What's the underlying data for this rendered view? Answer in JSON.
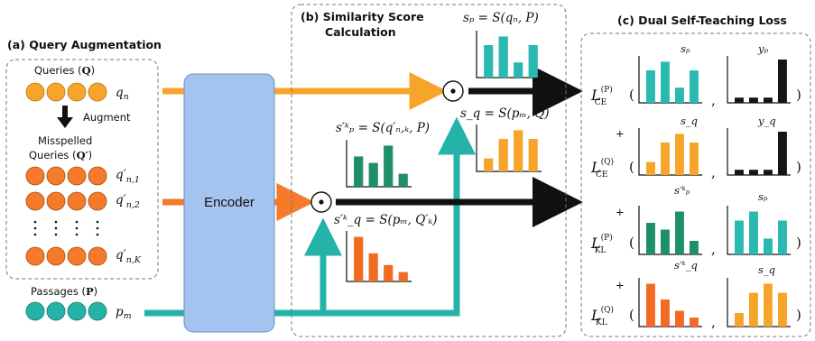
{
  "colors": {
    "query": "#f7a42b",
    "misspelled": "#f57a2a",
    "passage": "#25b3a7",
    "teal_bar": "#2ab9b0",
    "green_bar": "#1f8f66",
    "orange_bar": "#f7a42b",
    "red_bar": "#f36b22",
    "black_bar": "#151515",
    "encoder": "#a5c3ef"
  },
  "section_a": {
    "title": "(a) Query Augmentation",
    "queries_label": "Queries (",
    "queries_symbol": "Q",
    "queries_close": ")",
    "query_var": "q",
    "query_sub": "n",
    "augment_label": "Augment",
    "misspelled_line1": "Misspelled",
    "misspelled_line2": "Queries (",
    "misspelled_symbol": "Q′",
    "misspelled_close": ")",
    "misspelled_rows": [
      {
        "var": "q′",
        "sub": "n,1"
      },
      {
        "var": "q′",
        "sub": "n,2"
      },
      {
        "var": "q′",
        "sub": "n,K"
      }
    ],
    "passages_label": "Passages (",
    "passages_symbol": "P",
    "passages_close": ")",
    "passage_var": "p",
    "passage_sub": "m"
  },
  "encoder": {
    "label": "Encoder"
  },
  "section_b": {
    "title_line1": "(b) Similarity Score",
    "title_line2": "Calculation",
    "sp_formula": "sₚ = S(qₙ, P)",
    "sq_formula": "s_q = S(pₘ, Q)",
    "spk_formula": "s′ᵏₚ = S(q′ₙ,ₖ, P)",
    "sqk_formula": "s′ᵏ_q = S(pₘ, Q′ₖ)",
    "dot_symbol": "⊙"
  },
  "section_c": {
    "title": "(c) Dual Self-Teaching Loss",
    "rows": [
      {
        "prefix": "",
        "loss": "L",
        "sup": "(P)",
        "sub": "CE",
        "left_label": "sₚ",
        "right_label": "yₚ"
      },
      {
        "prefix": "+",
        "loss": "L",
        "sup": "(Q)",
        "sub": "CE",
        "left_label": "s_q",
        "right_label": "y_q"
      },
      {
        "prefix": "+",
        "loss": "L",
        "sup": "(P)",
        "sub": "KL",
        "left_label": "s′ᵏₚ",
        "right_label": "sₚ"
      },
      {
        "prefix": "+",
        "loss": "L",
        "sup": "(Q)",
        "sub": "KL",
        "left_label": "s′ᵏ_q",
        "right_label": "s_q"
      }
    ],
    "open_paren": "(",
    "comma": ",",
    "close_paren": ")"
  },
  "bar_charts": [
    {
      "id": "b-sp",
      "color": "teal_bar",
      "values": [
        0.75,
        0.95,
        0.35,
        0.75
      ]
    },
    {
      "id": "b-sq",
      "color": "orange_bar",
      "values": [
        0.3,
        0.75,
        0.95,
        0.75
      ]
    },
    {
      "id": "b-spk",
      "color": "green_bar",
      "values": [
        0.7,
        0.55,
        0.95,
        0.3
      ]
    },
    {
      "id": "b-sqk",
      "color": "red_bar",
      "values": [
        0.95,
        0.6,
        0.35,
        0.2
      ]
    },
    {
      "id": "c-r1-left",
      "color": "teal_bar",
      "values": [
        0.75,
        0.95,
        0.35,
        0.75
      ]
    },
    {
      "id": "c-r1-right",
      "color": "black_bar",
      "values": [
        0.12,
        0.12,
        0.12,
        1.0
      ]
    },
    {
      "id": "c-r2-left",
      "color": "orange_bar",
      "values": [
        0.3,
        0.75,
        0.95,
        0.75
      ]
    },
    {
      "id": "c-r2-right",
      "color": "black_bar",
      "values": [
        0.12,
        0.12,
        0.12,
        1.0
      ]
    },
    {
      "id": "c-r3-left",
      "color": "green_bar",
      "values": [
        0.7,
        0.55,
        0.95,
        0.3
      ]
    },
    {
      "id": "c-r3-right",
      "color": "teal_bar",
      "values": [
        0.75,
        0.95,
        0.35,
        0.75
      ]
    },
    {
      "id": "c-r4-left",
      "color": "red_bar",
      "values": [
        0.95,
        0.6,
        0.35,
        0.2
      ]
    },
    {
      "id": "c-r4-right",
      "color": "orange_bar",
      "values": [
        0.3,
        0.75,
        0.95,
        0.75
      ]
    }
  ]
}
